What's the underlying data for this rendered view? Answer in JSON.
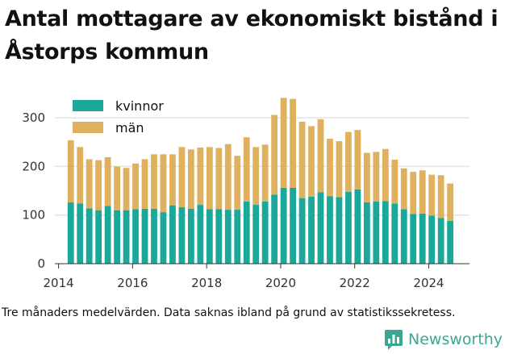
{
  "title": "Antal mottagare av ekonomiskt bistånd i Åstorps kommun",
  "footnote": "Tre månaders medelvärden. Data saknas ibland på grund av statistikssekretess.",
  "brand": {
    "name": "Newsworthy",
    "color": "#3aa795"
  },
  "chart_data": {
    "type": "bar",
    "stacked": true,
    "x_start": 2014.33,
    "x_step": 0.25,
    "xlim": [
      2013.9,
      2025.1
    ],
    "ylim": [
      0,
      350
    ],
    "xticks": [
      2014,
      2016,
      2018,
      2020,
      2022,
      2024
    ],
    "yticks": [
      0,
      100,
      200,
      300
    ],
    "grid": true,
    "legend": "top-left",
    "series": [
      {
        "name": "kvinnor",
        "color": "#1aa89b",
        "values": [
          126,
          124,
          114,
          110,
          119,
          110,
          110,
          112,
          113,
          113,
          106,
          120,
          116,
          113,
          121,
          112,
          112,
          111,
          111,
          128,
          121,
          128,
          142,
          156,
          156,
          135,
          138,
          147,
          139,
          137,
          148,
          153,
          126,
          128,
          129,
          124,
          112,
          102,
          103,
          99,
          94,
          88
        ]
      },
      {
        "name": "män",
        "color": "#dfb15e",
        "values": [
          128,
          116,
          101,
          103,
          100,
          90,
          87,
          94,
          102,
          112,
          119,
          105,
          124,
          122,
          118,
          128,
          126,
          135,
          111,
          132,
          119,
          117,
          164,
          185,
          183,
          157,
          145,
          150,
          118,
          115,
          123,
          122,
          102,
          102,
          107,
          90,
          84,
          87,
          89,
          84,
          88,
          77
        ]
      }
    ]
  }
}
